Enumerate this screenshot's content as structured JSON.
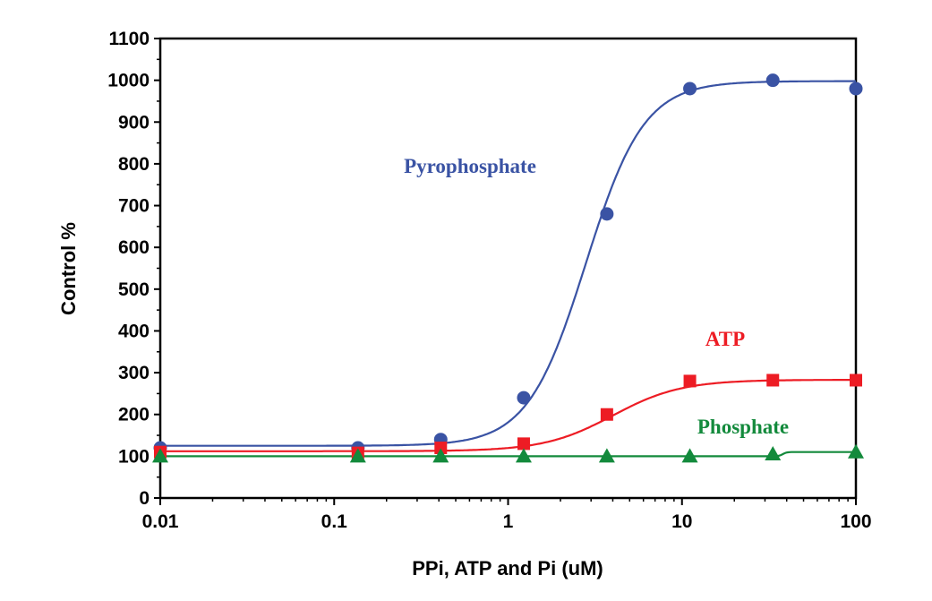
{
  "chart_data": {
    "type": "line",
    "title": "",
    "xlabel": "PPi, ATP and Pi (uM)",
    "ylabel": "Control %",
    "xscale": "log",
    "xlim": [
      0.01,
      100
    ],
    "ylim": [
      0,
      1100
    ],
    "grid": false,
    "x_ticks": [
      "0.01",
      "0.1",
      "1",
      "10",
      "100"
    ],
    "y_ticks": [
      "0",
      "100",
      "200",
      "300",
      "400",
      "500",
      "600",
      "700",
      "800",
      "900",
      "1000",
      "1100"
    ],
    "x": [
      0.01,
      0.137,
      0.41,
      1.23,
      3.7,
      11.1,
      33.3,
      100
    ],
    "series": [
      {
        "name": "Pyrophosphate",
        "color": "#3a53a4",
        "marker": "circle",
        "values": [
          120,
          120,
          140,
          240,
          680,
          980,
          1000,
          980
        ],
        "fit": {
          "bottom": 125,
          "top": 998,
          "ec50": 2.8,
          "hill": 2.6
        }
      },
      {
        "name": "ATP",
        "color": "#ed1c24",
        "marker": "square",
        "values": [
          110,
          108,
          120,
          130,
          200,
          280,
          282,
          282
        ],
        "fit": {
          "bottom": 112,
          "top": 283,
          "ec50": 4.0,
          "hill": 2.2
        }
      },
      {
        "name": "Phosphate",
        "color": "#138a3c",
        "marker": "triangle",
        "values": [
          100,
          100,
          100,
          100,
          100,
          100,
          105,
          110
        ],
        "fit": {
          "bottom": 100,
          "top": 110,
          "ec50": 38,
          "hill": 40
        }
      }
    ]
  }
}
